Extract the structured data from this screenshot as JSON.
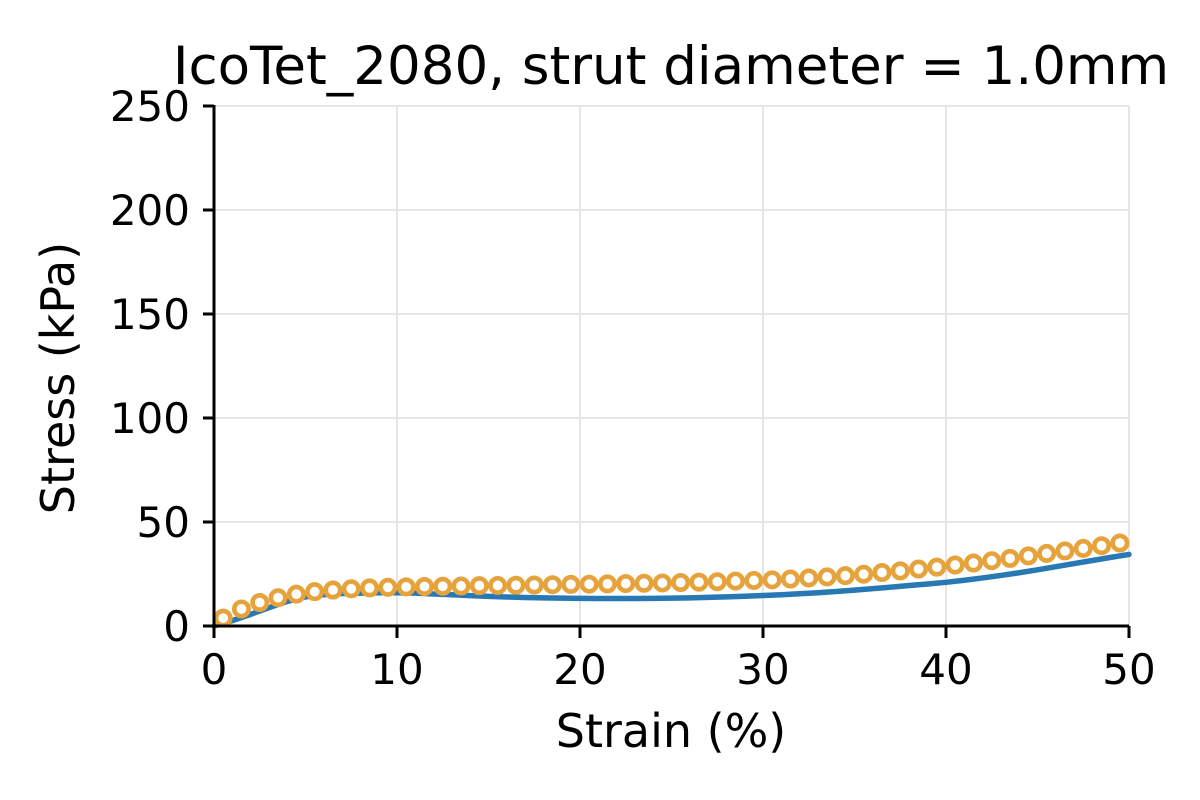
{
  "chart_data": {
    "type": "line",
    "title": "IcoTet_2080, strut diameter = 1.0mm",
    "xlabel": "Strain (%)",
    "ylabel": "Stress (kPa)",
    "xlim": [
      0,
      50
    ],
    "ylim": [
      0,
      250
    ],
    "x_ticks": [
      0,
      10,
      20,
      30,
      40,
      50
    ],
    "y_ticks": [
      0,
      50,
      100,
      150,
      200,
      250
    ],
    "grid": true,
    "legend": "none",
    "colors": {
      "background": "#ffffff",
      "grid": "#e6e6e6",
      "axis": "#000000",
      "text": "#000000",
      "line_series": "#2878b4",
      "marker_series": "#e6a33c"
    },
    "series": [
      {
        "name": "solid-blue-line",
        "type": "line",
        "color": "#2878b4",
        "line_width": 5.5,
        "x": [
          0,
          1,
          2,
          3,
          4,
          5,
          6,
          7,
          8,
          9,
          10,
          11,
          12,
          13,
          14,
          15,
          16,
          17,
          18,
          19,
          20,
          21,
          22,
          23,
          24,
          25,
          26,
          27,
          28,
          29,
          30,
          31,
          32,
          33,
          34,
          35,
          36,
          37,
          38,
          39,
          40,
          41,
          42,
          43,
          44,
          45,
          46,
          47,
          48,
          49,
          50
        ],
        "y": [
          0,
          2.6,
          5.6,
          8.8,
          11.8,
          14.0,
          15.1,
          15.6,
          15.8,
          16.0,
          16.0,
          15.8,
          15.4,
          15.0,
          14.6,
          14.25,
          13.95,
          13.7,
          13.5,
          13.4,
          13.3,
          13.25,
          13.2,
          13.25,
          13.3,
          13.4,
          13.55,
          13.75,
          14.0,
          14.3,
          14.65,
          15.05,
          15.5,
          16.0,
          16.6,
          17.25,
          17.95,
          18.7,
          19.45,
          20.2,
          21.0,
          22.0,
          23.1,
          24.3,
          25.6,
          27.0,
          28.5,
          30.0,
          31.5,
          33.0,
          34.4
        ]
      },
      {
        "name": "open-orange-circles",
        "type": "scatter",
        "marker": "open-circle",
        "color": "#e6a33c",
        "marker_face": "#ffffff",
        "marker_size": 19,
        "marker_edge_width": 4.6,
        "x": [
          0.5,
          1.5,
          2.5,
          3.5,
          4.5,
          5.5,
          6.5,
          7.5,
          8.5,
          9.5,
          10.5,
          11.5,
          12.5,
          13.5,
          14.5,
          15.5,
          16.5,
          17.5,
          18.5,
          19.5,
          20.5,
          21.5,
          22.5,
          23.5,
          24.5,
          25.5,
          26.5,
          27.5,
          28.5,
          29.5,
          30.5,
          31.5,
          32.5,
          33.5,
          34.5,
          35.5,
          36.5,
          37.5,
          38.5,
          39.5,
          40.5,
          41.5,
          42.5,
          43.5,
          44.5,
          45.5,
          46.5,
          47.5,
          48.5,
          49.5
        ],
        "y": [
          3.8,
          8.2,
          11.3,
          13.6,
          15.3,
          16.5,
          17.3,
          17.9,
          18.3,
          18.6,
          18.8,
          19.0,
          19.1,
          19.25,
          19.4,
          19.5,
          19.6,
          19.7,
          19.85,
          20.0,
          20.1,
          20.25,
          20.4,
          20.55,
          20.7,
          20.9,
          21.1,
          21.3,
          21.6,
          21.9,
          22.2,
          22.6,
          23.1,
          23.6,
          24.2,
          24.9,
          25.7,
          26.5,
          27.4,
          28.3,
          29.3,
          30.3,
          31.4,
          32.5,
          33.7,
          34.9,
          36.1,
          37.3,
          38.6,
          39.9
        ]
      }
    ]
  }
}
